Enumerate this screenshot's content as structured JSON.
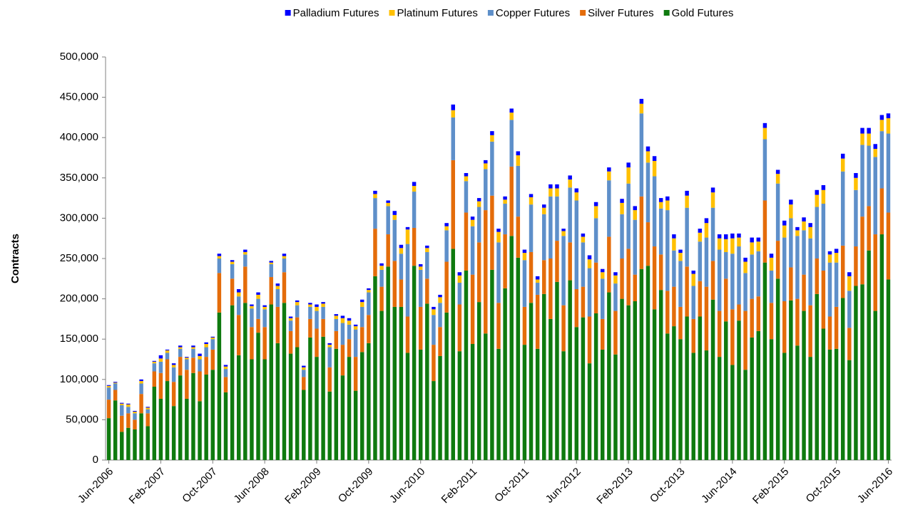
{
  "chart_data": {
    "type": "stacked_bar",
    "y_label": "Contracts",
    "legend": "top",
    "categories": [
      "Jun-2006",
      null,
      null,
      null,
      null,
      null,
      null,
      null,
      "Feb-2007",
      null,
      null,
      null,
      null,
      null,
      null,
      null,
      "Oct-2007",
      null,
      null,
      null,
      null,
      null,
      null,
      null,
      "Jun-2008",
      null,
      null,
      null,
      null,
      null,
      null,
      null,
      "Feb-2009",
      null,
      null,
      null,
      null,
      null,
      null,
      null,
      "Oct-2009",
      null,
      null,
      null,
      null,
      null,
      null,
      null,
      "Jun-2010",
      null,
      null,
      null,
      null,
      null,
      null,
      null,
      "Feb-2011",
      null,
      null,
      null,
      null,
      null,
      null,
      null,
      "Oct-2011",
      null,
      null,
      null,
      null,
      null,
      null,
      null,
      "Jun-2012",
      null,
      null,
      null,
      null,
      null,
      null,
      null,
      "Feb-2013",
      null,
      null,
      null,
      null,
      null,
      null,
      null,
      "Oct-2013",
      null,
      null,
      null,
      null,
      null,
      null,
      null,
      "Jun-2014",
      null,
      null,
      null,
      null,
      null,
      null,
      null,
      "Feb-2015",
      null,
      null,
      null,
      null,
      null,
      null,
      null,
      "Oct-2015",
      null,
      null,
      null,
      null,
      null,
      null,
      null,
      "Jun-2016"
    ],
    "series": [
      {
        "name": "Gold Futures",
        "color": "#0f7a0f",
        "values": [
          52000,
          74000,
          35000,
          40000,
          38000,
          58000,
          42000,
          91000,
          76000,
          98000,
          67000,
          105000,
          76000,
          108000,
          73000,
          106000,
          112000,
          183000,
          84000,
          192000,
          130000,
          195000,
          125000,
          158000,
          125000,
          193000,
          145000,
          195000,
          132000,
          140000,
          87000,
          152000,
          128000,
          153000,
          85000,
          138000,
          105000,
          128000,
          86000,
          134000,
          145000,
          228000,
          185000,
          240000,
          190000,
          190000,
          133000,
          241000,
          137000,
          194000,
          98000,
          129000,
          183000,
          262000,
          135000,
          235000,
          144000,
          196000,
          157000,
          236000,
          138000,
          213000,
          278000,
          251000,
          143000,
          195000,
          138000,
          206000,
          175000,
          221000,
          135000,
          223000,
          165000,
          177000,
          120000,
          182000,
          137000,
          208000,
          131000,
          200000,
          192000,
          197000,
          237000,
          241000,
          187000,
          211000,
          157000,
          166000,
          150000,
          178000,
          133000,
          178000,
          136000,
          199000,
          128000,
          172000,
          118000,
          173000,
          112000,
          152000,
          160000,
          245000,
          150000,
          225000,
          133000,
          198000,
          142000,
          185000,
          128000,
          206000,
          163000,
          137000,
          138000,
          201000,
          124000,
          216000,
          218000,
          260000,
          185000,
          280000,
          224000
        ]
      },
      {
        "name": "Silver Futures",
        "color": "#e46c0a",
        "values": [
          23000,
          13000,
          20000,
          18000,
          12000,
          24000,
          16000,
          19000,
          32000,
          27000,
          30000,
          23000,
          36000,
          19000,
          37000,
          22000,
          25000,
          49000,
          19000,
          33000,
          50000,
          45000,
          40000,
          17000,
          40000,
          34000,
          45000,
          38000,
          28000,
          37000,
          16000,
          23000,
          35000,
          22000,
          30000,
          22000,
          38000,
          22000,
          42000,
          31000,
          35000,
          59000,
          30000,
          40000,
          57000,
          34000,
          45000,
          47000,
          53000,
          31000,
          45000,
          36000,
          63000,
          110000,
          58000,
          72000,
          86000,
          74000,
          153000,
          92000,
          57000,
          67000,
          86000,
          51000,
          47000,
          63000,
          67000,
          42000,
          75000,
          51000,
          57000,
          47000,
          47000,
          38000,
          58000,
          63000,
          38000,
          69000,
          54000,
          50000,
          70000,
          33000,
          90000,
          54000,
          78000,
          44000,
          53000,
          49000,
          40000,
          62000,
          42000,
          44000,
          79000,
          48000,
          57000,
          53000,
          69000,
          20000,
          73000,
          48000,
          43000,
          77000,
          45000,
          47000,
          64000,
          41000,
          58000,
          45000,
          64000,
          44000,
          72000,
          41000,
          52000,
          65000,
          40000,
          49000,
          84000,
          55000,
          95000,
          57000,
          83000
        ]
      },
      {
        "name": "Copper Futures",
        "color": "#5e8fc9",
        "values": [
          15000,
          8000,
          13000,
          8000,
          8000,
          13000,
          5000,
          10000,
          14000,
          8000,
          18000,
          10000,
          13000,
          11000,
          15000,
          12000,
          13000,
          18000,
          10000,
          18000,
          23000,
          15000,
          23000,
          25000,
          22000,
          16000,
          22000,
          17000,
          13000,
          15000,
          9000,
          15000,
          22000,
          15000,
          25000,
          15000,
          27000,
          18000,
          34000,
          25000,
          28000,
          38000,
          21000,
          35000,
          51000,
          32000,
          90000,
          45000,
          46000,
          33000,
          37000,
          30000,
          39000,
          53000,
          27000,
          39000,
          60000,
          44000,
          51000,
          67000,
          75000,
          38000,
          58000,
          63000,
          58000,
          59000,
          15000,
          57000,
          77000,
          55000,
          86000,
          68000,
          110000,
          55000,
          60000,
          55000,
          50000,
          70000,
          34000,
          55000,
          81000,
          68000,
          103000,
          74000,
          87000,
          57000,
          100000,
          45000,
          57000,
          73000,
          41000,
          49000,
          61000,
          66000,
          76000,
          33000,
          69000,
          72000,
          47000,
          55000,
          56000,
          76000,
          40000,
          71000,
          79000,
          61000,
          78000,
          55000,
          83000,
          64000,
          83000,
          67000,
          55000,
          92000,
          46000,
          70000,
          89000,
          75000,
          96000,
          71000,
          98000
        ]
      },
      {
        "name": "Platinum Futures",
        "color": "#ffc000",
        "values": [
          2000,
          1000,
          2000,
          3000,
          2000,
          3000,
          2000,
          2000,
          4000,
          3000,
          3000,
          2000,
          2000,
          2000,
          4000,
          4000,
          2000,
          3000,
          3000,
          3000,
          5000,
          3000,
          3000,
          5000,
          3000,
          2000,
          4000,
          3000,
          3000,
          4000,
          3000,
          3000,
          5000,
          4000,
          3000,
          4000,
          6000,
          5000,
          4000,
          6000,
          3000,
          5000,
          5000,
          4000,
          6000,
          7000,
          18000,
          7000,
          4000,
          5000,
          7000,
          7000,
          5000,
          9000,
          9000,
          6000,
          8000,
          7000,
          7000,
          8000,
          13000,
          5000,
          9000,
          13000,
          9000,
          9000,
          4000,
          8000,
          10000,
          10000,
          6000,
          10000,
          10000,
          7000,
          11000,
          15000,
          8000,
          11000,
          10000,
          14000,
          20000,
          12000,
          12000,
          14000,
          19000,
          8000,
          12000,
          15000,
          10000,
          15000,
          15000,
          11000,
          18000,
          19000,
          14000,
          16000,
          19000,
          11000,
          14000,
          15000,
          12000,
          14000,
          16000,
          12000,
          15000,
          17000,
          7000,
          11000,
          14000,
          15000,
          17000,
          10000,
          12000,
          16000,
          18000,
          15000,
          14000,
          15000,
          10000,
          14000,
          19000
        ]
      },
      {
        "name": "Palladium Futures",
        "color": "#0000ff",
        "values": [
          1000,
          1000,
          1000,
          1000,
          1000,
          2000,
          1000,
          1000,
          4000,
          1000,
          2000,
          2000,
          1000,
          2000,
          3000,
          2000,
          1000,
          3000,
          2000,
          2000,
          4000,
          3000,
          2000,
          3000,
          2000,
          2000,
          3000,
          3000,
          2000,
          2000,
          2000,
          2000,
          3000,
          2000,
          2000,
          2000,
          3000,
          3000,
          2000,
          3000,
          2000,
          4000,
          3000,
          3000,
          5000,
          4000,
          3000,
          5000,
          3000,
          3000,
          3000,
          3000,
          4000,
          7000,
          4000,
          4000,
          4000,
          4000,
          4000,
          5000,
          4000,
          4000,
          5000,
          5000,
          4000,
          4000,
          4000,
          4000,
          5000,
          5000,
          3000,
          5000,
          5000,
          4000,
          5000,
          5000,
          4000,
          5000,
          4000,
          5000,
          6000,
          5000,
          6000,
          6000,
          6000,
          5000,
          5000,
          5000,
          4000,
          6000,
          4000,
          5000,
          6000,
          6000,
          5000,
          6000,
          6000,
          5000,
          5000,
          6000,
          5000,
          6000,
          5000,
          5000,
          6000,
          6000,
          4000,
          5000,
          5000,
          6000,
          6000,
          4000,
          5000,
          6000,
          5000,
          6000,
          7000,
          7000,
          6000,
          6000,
          6000
        ]
      }
    ],
    "ylim": [
      0,
      500000
    ],
    "yticks": [
      0,
      {
        "value": 50000,
        "label": "50,000"
      },
      {
        "value": 100000,
        "label": "100,000"
      },
      {
        "value": 150000,
        "label": "150,000"
      },
      {
        "value": 200000,
        "label": "200,000"
      },
      {
        "value": 250000,
        "label": "250,000"
      },
      {
        "value": 300000,
        "label": "300,000"
      },
      {
        "value": 350000,
        "label": "350,000"
      },
      {
        "value": 400000,
        "label": "400,000"
      },
      {
        "value": 450000,
        "label": "450,000"
      },
      {
        "value": 500000,
        "label": "500,000"
      }
    ]
  }
}
